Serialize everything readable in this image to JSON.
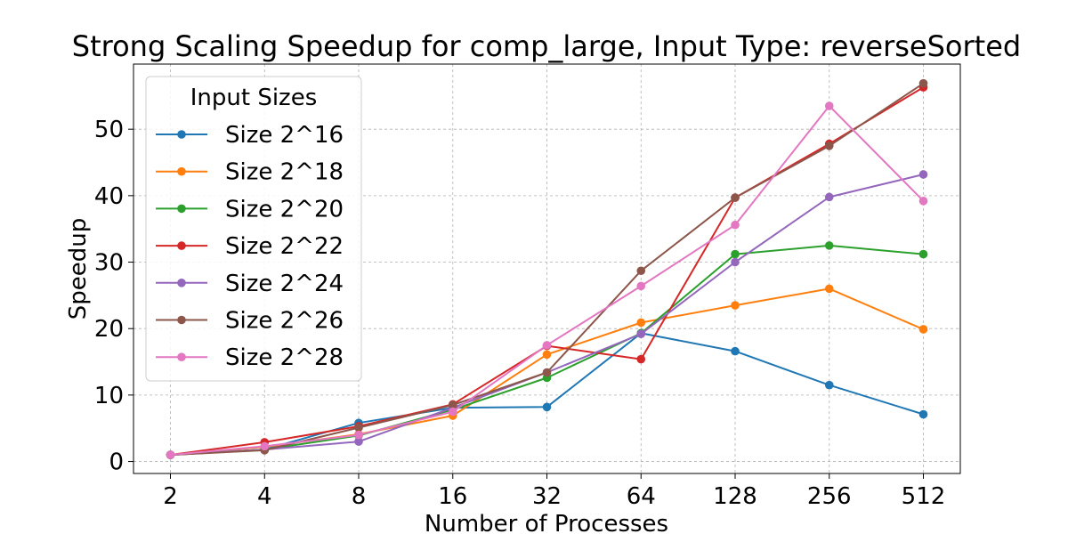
{
  "chart_data": {
    "type": "line",
    "title": "Strong Scaling Speedup for comp_large, Input Type: reverseSorted",
    "xlabel": "Number of Processes",
    "ylabel": "Speedup",
    "x": [
      "2",
      "4",
      "8",
      "16",
      "32",
      "64",
      "128",
      "256",
      "512"
    ],
    "yticks": [
      0,
      10,
      20,
      30,
      40,
      50
    ],
    "ylim": [
      -1.8,
      59.8
    ],
    "grid": true,
    "legend": {
      "title": "Input Sizes",
      "placement": "upper-left"
    },
    "series": [
      {
        "name": "Size 2^16",
        "color": "#1f77b4",
        "values": [
          1.0,
          1.8,
          5.8,
          8.1,
          8.2,
          19.3,
          16.6,
          11.5,
          7.1
        ]
      },
      {
        "name": "Size 2^18",
        "color": "#ff7f0e",
        "values": [
          1.0,
          2.2,
          4.1,
          6.9,
          16.1,
          20.9,
          23.5,
          26.0,
          19.9
        ]
      },
      {
        "name": "Size 2^20",
        "color": "#2ca02c",
        "values": [
          1.0,
          1.8,
          3.9,
          7.8,
          12.6,
          19.3,
          31.2,
          32.5,
          31.2
        ]
      },
      {
        "name": "Size 2^22",
        "color": "#d62728",
        "values": [
          1.0,
          2.9,
          5.3,
          8.6,
          17.4,
          15.4,
          39.7,
          47.8,
          56.3
        ]
      },
      {
        "name": "Size 2^24",
        "color": "#9467bd",
        "values": [
          1.0,
          1.8,
          3.0,
          8.1,
          13.4,
          19.2,
          30.0,
          39.8,
          43.2
        ]
      },
      {
        "name": "Size 2^26",
        "color": "#8c564b",
        "values": [
          1.0,
          1.7,
          5.1,
          8.5,
          13.4,
          28.7,
          39.7,
          47.5,
          56.9
        ]
      },
      {
        "name": "Size 2^28",
        "color": "#e377c2",
        "values": [
          1.0,
          2.3,
          4.0,
          7.5,
          17.5,
          26.4,
          35.6,
          53.5,
          39.2
        ]
      }
    ]
  }
}
